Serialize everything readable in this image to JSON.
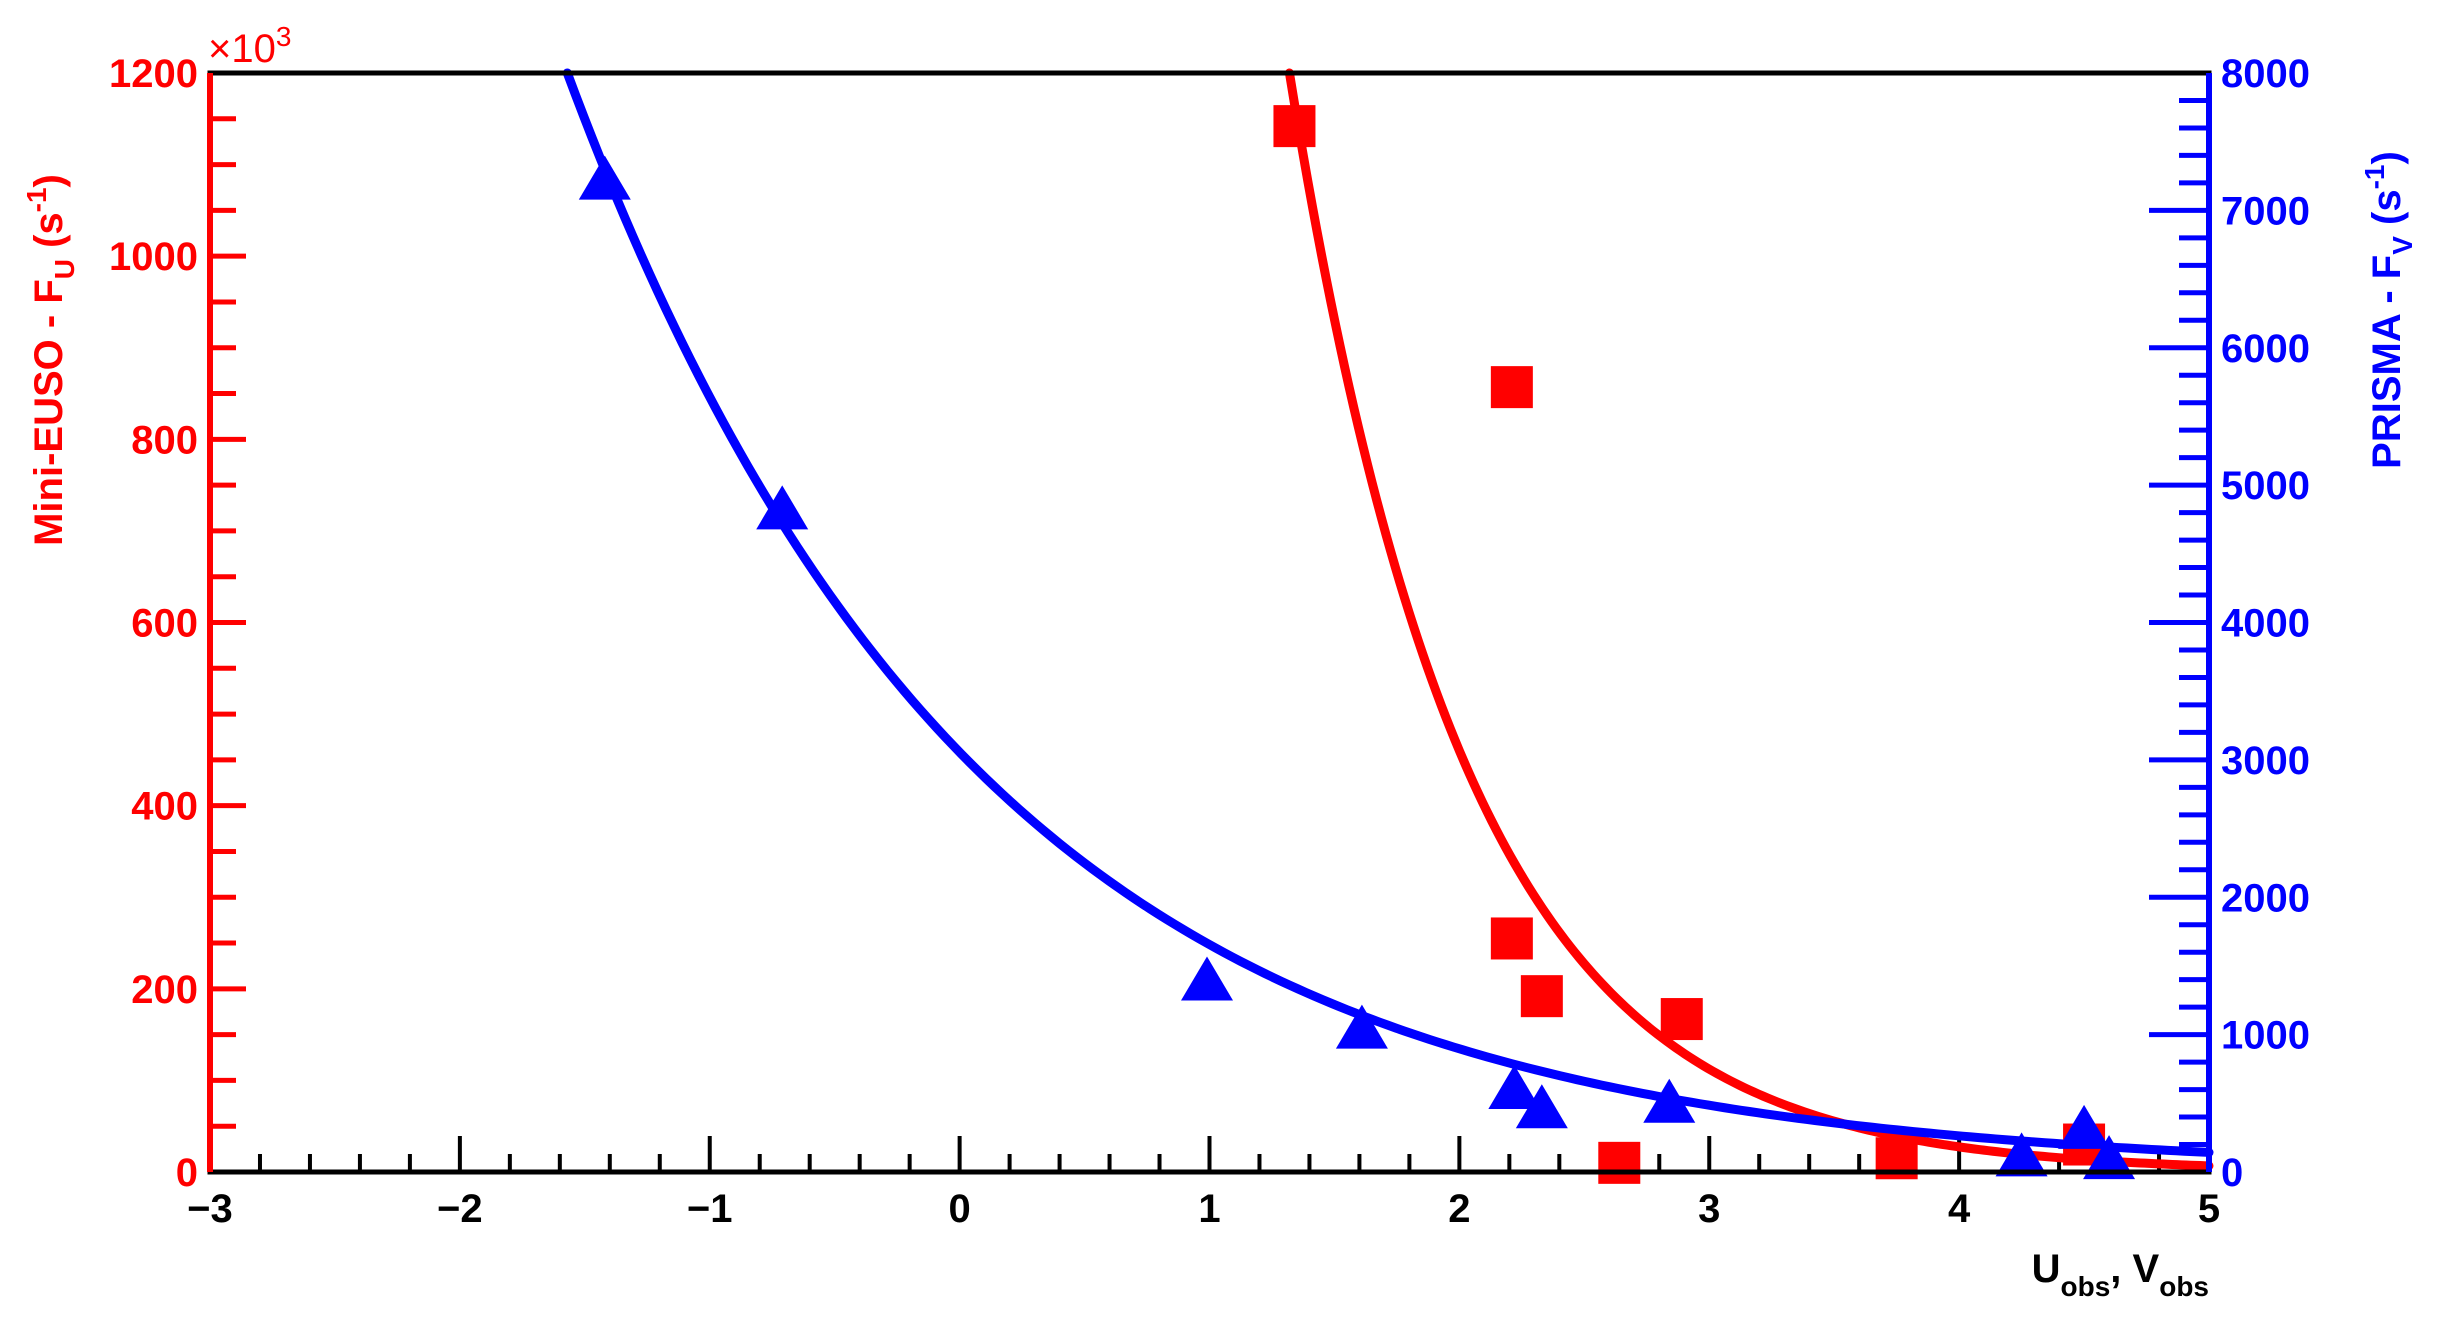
{
  "chart_data": {
    "type": "scatter",
    "x_axis": {
      "title_main_1": "U",
      "title_sub_1": "obs",
      "title_sep": ", ",
      "title_main_2": "V",
      "title_sub_2": "obs",
      "range": [
        -3,
        5
      ],
      "major_ticks": [
        -3,
        -2,
        -1,
        0,
        1,
        2,
        3,
        4,
        5
      ],
      "tick_labels": [
        "−3",
        "−2",
        "−1",
        "0",
        "1",
        "2",
        "3",
        "4",
        "5"
      ],
      "minor_step": 0.2
    },
    "y_left_axis": {
      "title_main": "Mini-EUSO  -  F",
      "title_sub": "U",
      "title_unit_open": " (s",
      "title_unit_sup": "-1",
      "title_unit_close": ")",
      "range": [
        0,
        1200
      ],
      "multiplier_base": "×10",
      "multiplier_exp": "3",
      "major_ticks": [
        0,
        200,
        400,
        600,
        800,
        1000,
        1200
      ],
      "tick_labels": [
        "0",
        "200",
        "400",
        "600",
        "800",
        "1000",
        "1200"
      ],
      "minor_step": 50,
      "color": "#ff0000"
    },
    "y_right_axis": {
      "title_main": "PRISMA  -  F",
      "title_sub": "V",
      "title_unit_open": " (s",
      "title_unit_sup": "-1",
      "title_unit_close": ")",
      "range": [
        0,
        8000
      ],
      "major_ticks": [
        0,
        1000,
        2000,
        3000,
        4000,
        5000,
        6000,
        7000,
        8000
      ],
      "tick_labels": [
        "0",
        "1000",
        "2000",
        "3000",
        "4000",
        "5000",
        "6000",
        "7000",
        "8000"
      ],
      "minor_step": 200,
      "color": "#0000ff"
    },
    "series": [
      {
        "axis": "left",
        "marker": "square",
        "color": "#ff0000",
        "points": [
          {
            "x": 1.34,
            "y": 1142
          },
          {
            "x": 2.21,
            "y": 857
          },
          {
            "x": 2.21,
            "y": 255
          },
          {
            "x": 2.33,
            "y": 192
          },
          {
            "x": 2.89,
            "y": 167
          },
          {
            "x": 2.64,
            "y": 10
          },
          {
            "x": 3.75,
            "y": 15
          },
          {
            "x": 4.5,
            "y": 30
          }
        ],
        "fit": {
          "x_start": 1.32,
          "x_end": 5.0,
          "y_at_start": 1200,
          "decay_per_unit": 1.41
        }
      },
      {
        "axis": "right",
        "marker": "triangle",
        "color": "#0000ff",
        "points": [
          {
            "x": -1.42,
            "y": 7200
          },
          {
            "x": -0.71,
            "y": 4800
          },
          {
            "x": 0.99,
            "y": 1370
          },
          {
            "x": 1.61,
            "y": 1020
          },
          {
            "x": 2.22,
            "y": 580
          },
          {
            "x": 2.33,
            "y": 440
          },
          {
            "x": 2.84,
            "y": 480
          },
          {
            "x": 4.25,
            "y": 90
          },
          {
            "x": 4.5,
            "y": 290
          },
          {
            "x": 4.6,
            "y": 70
          }
        ],
        "fit": {
          "x_start": -1.57,
          "x_end": 5.0,
          "y_at_start": 8000,
          "decay_per_unit": 0.613
        }
      }
    ]
  }
}
